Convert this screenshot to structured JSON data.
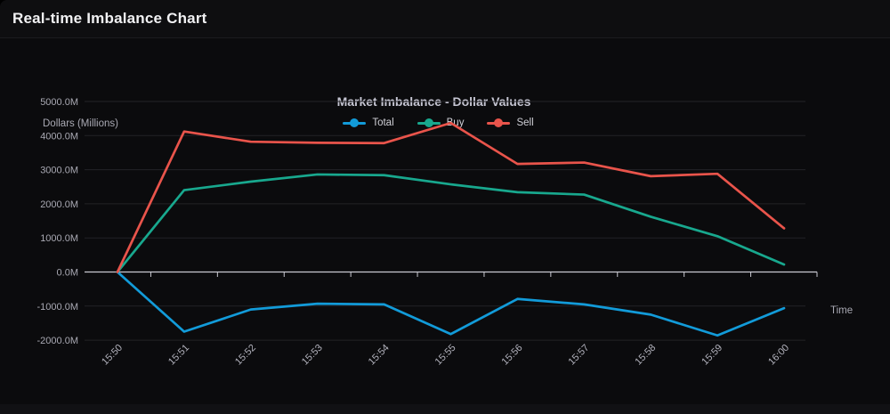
{
  "header": {
    "title": "Real-time Imbalance Chart"
  },
  "chart_data": {
    "type": "line",
    "title": "Market Imbalance - Dollar Values",
    "xlabel": "Time",
    "ylabel": "Dollars (Millions)",
    "x": [
      "15:50",
      "15:51",
      "15:52",
      "15:53",
      "15:54",
      "15:55",
      "15:56",
      "15:57",
      "15:58",
      "15:59",
      "16:00"
    ],
    "series": [
      {
        "name": "Total",
        "color": "#129bd9",
        "values": [
          0,
          -1750,
          -1100,
          -930,
          -950,
          -1820,
          -790,
          -950,
          -1250,
          -1860,
          -1060
        ]
      },
      {
        "name": "Buy",
        "color": "#18a88e",
        "values": [
          0,
          2400,
          2650,
          2860,
          2840,
          2570,
          2340,
          2270,
          1620,
          1050,
          220
        ]
      },
      {
        "name": "Sell",
        "color": "#e9544b",
        "values": [
          0,
          4120,
          3820,
          3790,
          3780,
          4370,
          3170,
          3210,
          2810,
          2880,
          1280
        ]
      }
    ],
    "ylim": [
      -2000,
      5000
    ],
    "yticks": [
      5000,
      4000,
      3000,
      2000,
      1000,
      0,
      -1000,
      -2000
    ],
    "ytick_labels": [
      "5000.0M",
      "4000.0M",
      "3000.0M",
      "2000.0M",
      "1000.0M",
      "0.0M",
      "-1000.0M",
      "-2000.0M"
    ],
    "legend_position": "top",
    "grid": true,
    "colors": {
      "grid": "#232327",
      "axis": "#c9c9d1",
      "tick_text": "#a9a9b3"
    }
  }
}
